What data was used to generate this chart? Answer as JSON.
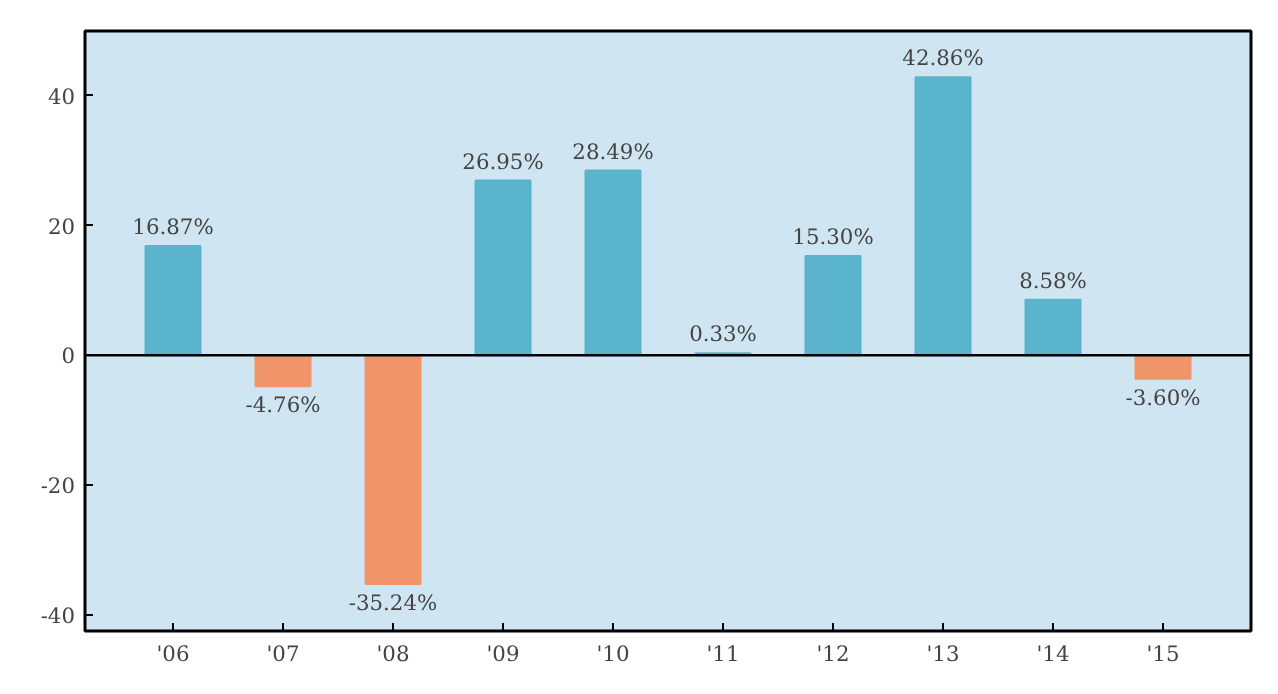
{
  "chart_data": {
    "type": "bar",
    "categories": [
      "'06",
      "'07",
      "'08",
      "'09",
      "'10",
      "'11",
      "'12",
      "'13",
      "'14",
      "'15"
    ],
    "values": [
      16.87,
      -4.76,
      -35.24,
      26.95,
      28.49,
      0.33,
      15.3,
      42.86,
      8.58,
      -3.6
    ],
    "value_labels": [
      "16.87%",
      "-4.76%",
      "-35.24%",
      "26.95%",
      "28.49%",
      "0.33%",
      "15.30%",
      "42.86%",
      "8.58%",
      "-3.60%"
    ],
    "colors": [
      "#5ab4cc",
      "#f0956a",
      "#f0956a",
      "#5ab4cc",
      "#5ab4cc",
      "#5ab4cc",
      "#5ab4cc",
      "#5ab4cc",
      "#5ab4cc",
      "#f0956a"
    ],
    "ylim": [
      -42.5,
      50
    ],
    "yticks": [
      -40,
      -20,
      0,
      20,
      40
    ],
    "ref_lines": [
      {
        "axis": "y",
        "value": 0,
        "label": null,
        "color": "#000000"
      }
    ]
  }
}
